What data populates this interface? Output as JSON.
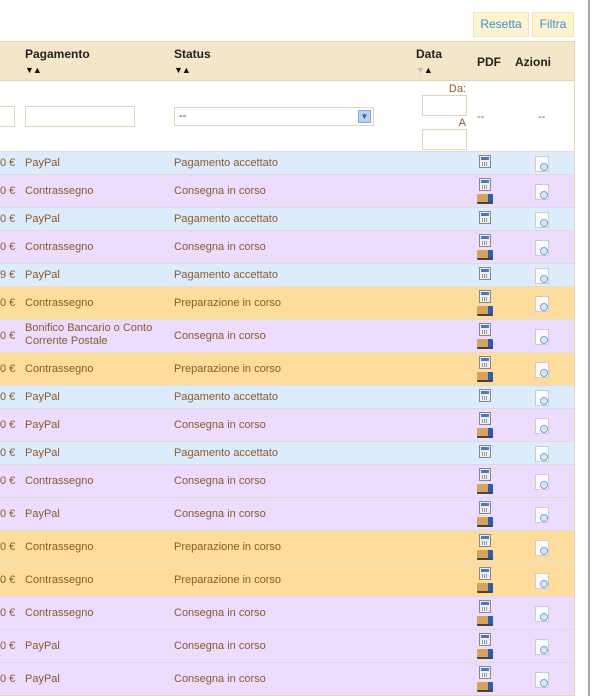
{
  "toolbar": {
    "reset_label": "Resetta",
    "filter_label": "Filtra"
  },
  "header": {
    "payment": "Pagamento",
    "status": "Status",
    "date": "Data",
    "pdf": "PDF",
    "actions": "Azioni",
    "sort_arrows": "▼▲"
  },
  "filters": {
    "status_value": "--",
    "date_from_label": "Da:",
    "date_to_label": "A",
    "pdf_placeholder": "--",
    "actions_placeholder": "--"
  },
  "colors": {
    "Pagamento accettato": "#dcecfd",
    "Consegna in corso": "#ecdcfd",
    "Preparazione in corso": "#fddc9c"
  },
  "rows": [
    {
      "amount": "0 €",
      "payment": "PayPal",
      "status": "Pagamento accettato",
      "delivery_icon": false
    },
    {
      "amount": "0 €",
      "payment": "Contrassegno",
      "status": "Consegna in corso",
      "delivery_icon": true
    },
    {
      "amount": "0 €",
      "payment": "PayPal",
      "status": "Pagamento accettato",
      "delivery_icon": false
    },
    {
      "amount": "0 €",
      "payment": "Contrassegno",
      "status": "Consegna in corso",
      "delivery_icon": true
    },
    {
      "amount": "9 €",
      "payment": "PayPal",
      "status": "Pagamento accettato",
      "delivery_icon": false
    },
    {
      "amount": "0 €",
      "payment": "Contrassegno",
      "status": "Preparazione in corso",
      "delivery_icon": true
    },
    {
      "amount": "0 €",
      "payment": "Bonifico Bancario o Conto Corrente Postale",
      "status": "Consegna in corso",
      "delivery_icon": true
    },
    {
      "amount": "0 €",
      "payment": "Contrassegno",
      "status": "Preparazione in corso",
      "delivery_icon": true
    },
    {
      "amount": "0 €",
      "payment": "PayPal",
      "status": "Pagamento accettato",
      "delivery_icon": false
    },
    {
      "amount": "0 €",
      "payment": "PayPal",
      "status": "Consegna in corso",
      "delivery_icon": true
    },
    {
      "amount": "0 €",
      "payment": "PayPal",
      "status": "Pagamento accettato",
      "delivery_icon": false
    },
    {
      "amount": "0 €",
      "payment": "Contrassegno",
      "status": "Consegna in corso",
      "delivery_icon": true
    },
    {
      "amount": "0 €",
      "payment": "PayPal",
      "status": "Consegna in corso",
      "delivery_icon": true
    },
    {
      "amount": "0 €",
      "payment": "Contrassegno",
      "status": "Preparazione in corso",
      "delivery_icon": true
    },
    {
      "amount": "0 €",
      "payment": "Contrassegno",
      "status": "Preparazione in corso",
      "delivery_icon": true
    },
    {
      "amount": "0 €",
      "payment": "Contrassegno",
      "status": "Consegna in corso",
      "delivery_icon": true
    },
    {
      "amount": "0 €",
      "payment": "PayPal",
      "status": "Consegna in corso",
      "delivery_icon": true
    },
    {
      "amount": "0 €",
      "payment": "PayPal",
      "status": "Consegna in corso",
      "delivery_icon": true
    }
  ]
}
